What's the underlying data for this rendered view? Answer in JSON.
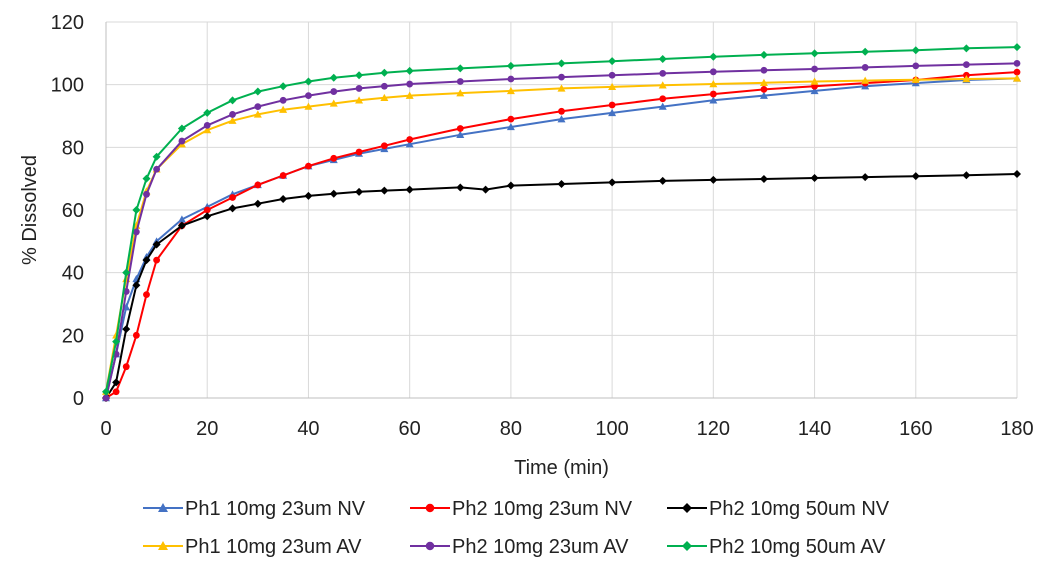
{
  "chart_data": {
    "type": "line",
    "title": "",
    "xlabel": "Time (min)",
    "ylabel": "% Dissolved",
    "xlim": [
      0,
      180
    ],
    "ylim": [
      0,
      120
    ],
    "xticks": [
      0,
      20,
      40,
      60,
      80,
      100,
      120,
      140,
      160,
      180
    ],
    "yticks": [
      0,
      20,
      40,
      60,
      80,
      100,
      120
    ],
    "grid": "both",
    "legend_position": "bottom",
    "series": [
      {
        "name": "Ph1 10mg 23um NV",
        "color": "#4472C4",
        "marker": "triangle",
        "x": [
          0,
          2,
          4,
          6,
          8,
          10,
          15,
          20,
          25,
          30,
          35,
          40,
          45,
          50,
          55,
          60,
          70,
          80,
          90,
          100,
          110,
          120,
          130,
          140,
          150,
          160,
          170,
          180
        ],
        "y": [
          0,
          14,
          29,
          38,
          45,
          50,
          57,
          61,
          65,
          68,
          71,
          74,
          76,
          78,
          79.5,
          81,
          84,
          86.5,
          89,
          91,
          93,
          95,
          96.5,
          98,
          99.5,
          100.5,
          101.5,
          102
        ]
      },
      {
        "name": "Ph2 10mg 23um NV",
        "color": "#FF0000",
        "marker": "circle",
        "x": [
          0,
          2,
          4,
          6,
          8,
          10,
          15,
          20,
          25,
          30,
          35,
          40,
          45,
          50,
          55,
          60,
          70,
          80,
          90,
          100,
          110,
          120,
          130,
          140,
          150,
          160,
          170,
          180
        ],
        "y": [
          0,
          2,
          10,
          20,
          33,
          44,
          55,
          60,
          64,
          68,
          71,
          74,
          76.5,
          78.5,
          80.5,
          82.5,
          86,
          89,
          91.5,
          93.5,
          95.5,
          97,
          98.5,
          99.5,
          100.5,
          101.5,
          103,
          104
        ]
      },
      {
        "name": "Ph2 10mg 50um NV",
        "color": "#000000",
        "marker": "diamond",
        "x": [
          0,
          2,
          4,
          6,
          8,
          10,
          15,
          20,
          25,
          30,
          35,
          40,
          45,
          50,
          55,
          60,
          70,
          75,
          80,
          90,
          100,
          110,
          120,
          130,
          140,
          150,
          160,
          170,
          180
        ],
        "y": [
          0,
          5,
          22,
          36,
          44,
          49,
          55,
          58,
          60.5,
          62,
          63.5,
          64.5,
          65.2,
          65.8,
          66.2,
          66.5,
          67.2,
          66.5,
          67.8,
          68.3,
          68.8,
          69.3,
          69.6,
          69.9,
          70.2,
          70.5,
          70.8,
          71.1,
          71.5
        ]
      },
      {
        "name": "Ph1 10mg 23um AV",
        "color": "#FFC000",
        "marker": "triangle",
        "x": [
          0,
          2,
          4,
          6,
          8,
          10,
          15,
          20,
          25,
          30,
          35,
          40,
          45,
          50,
          55,
          60,
          70,
          80,
          90,
          100,
          110,
          120,
          130,
          140,
          150,
          160,
          170,
          180
        ],
        "y": [
          2,
          20,
          38,
          55,
          66,
          73,
          81,
          85.5,
          88.5,
          90.5,
          92,
          93,
          94,
          95,
          95.8,
          96.5,
          97.3,
          98,
          98.8,
          99.3,
          99.8,
          100.2,
          100.6,
          101,
          101.3,
          101.6,
          101.8,
          102
        ]
      },
      {
        "name": "Ph2 10mg 23um AV",
        "color": "#7030A0",
        "marker": "circle",
        "x": [
          0,
          2,
          4,
          6,
          8,
          10,
          15,
          20,
          25,
          30,
          35,
          40,
          45,
          50,
          55,
          60,
          70,
          80,
          90,
          100,
          110,
          120,
          130,
          140,
          150,
          160,
          170,
          180
        ],
        "y": [
          0,
          14,
          34,
          53,
          65,
          73,
          82,
          87,
          90.5,
          93,
          95,
          96.5,
          97.8,
          98.8,
          99.5,
          100.2,
          101,
          101.8,
          102.4,
          103,
          103.6,
          104.1,
          104.6,
          105,
          105.5,
          106,
          106.4,
          106.8
        ]
      },
      {
        "name": "Ph2 10mg 50um AV",
        "color": "#00B050",
        "marker": "diamond",
        "x": [
          0,
          2,
          4,
          6,
          8,
          10,
          15,
          20,
          25,
          30,
          35,
          40,
          45,
          50,
          55,
          60,
          70,
          80,
          90,
          100,
          110,
          120,
          130,
          140,
          150,
          160,
          170,
          180
        ],
        "y": [
          2,
          18,
          40,
          60,
          70,
          77,
          86,
          91,
          95,
          97.8,
          99.5,
          101,
          102.2,
          103,
          103.8,
          104.4,
          105.2,
          106,
          106.8,
          107.5,
          108.2,
          108.9,
          109.5,
          110,
          110.5,
          111,
          111.6,
          112
        ]
      }
    ]
  }
}
